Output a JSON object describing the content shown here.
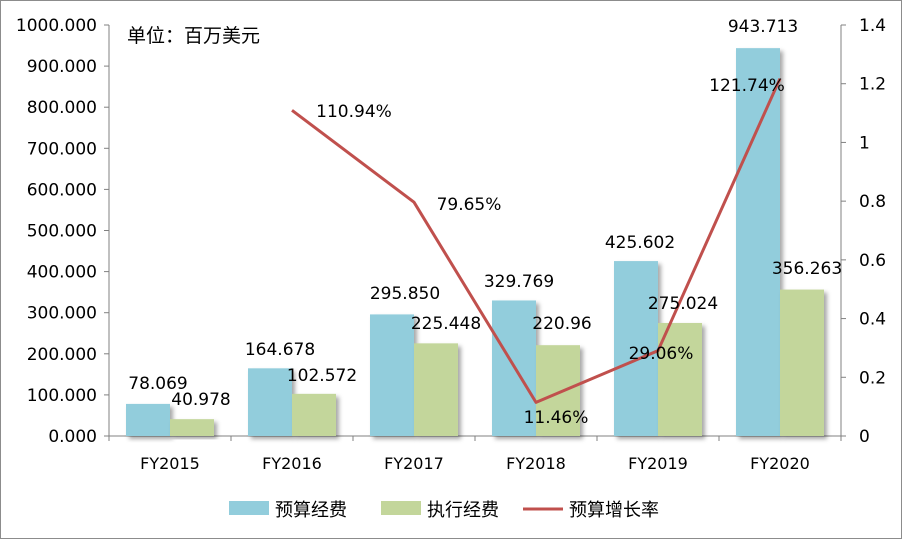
{
  "chart_data": {
    "type": "bar",
    "unit_note": "单位：百万美元",
    "categories": [
      "FY2015",
      "FY2016",
      "FY2017",
      "FY2018",
      "FY2019",
      "FY2020"
    ],
    "series": [
      {
        "name": "预算经费",
        "kind": "bar",
        "axis": "left",
        "color": "#92CDDC",
        "values": [
          78.069,
          164.678,
          295.85,
          329.769,
          425.602,
          943.713
        ],
        "labels": [
          "78.069",
          "164.678",
          "295.850",
          "329.769",
          "425.602",
          "943.713"
        ]
      },
      {
        "name": "执行经费",
        "kind": "bar",
        "axis": "left",
        "color": "#C3D69B",
        "values": [
          40.978,
          102.572,
          225.448,
          220.96,
          275.024,
          356.263
        ],
        "labels": [
          "40.978",
          "102.572",
          "225.448",
          "220.96",
          "275.024",
          "356.263"
        ]
      },
      {
        "name": "预算增长率",
        "kind": "line",
        "axis": "right",
        "color": "#C0504D",
        "values": [
          null,
          1.1094,
          0.7965,
          0.1146,
          0.2906,
          1.2174
        ],
        "labels": [
          null,
          "110.94%",
          "79.65%",
          "11.46%",
          "29.06%",
          "121.74%"
        ]
      }
    ],
    "y_left": {
      "ylim": [
        0,
        1000
      ],
      "ticks": [
        "0.000",
        "100.000",
        "200.000",
        "300.000",
        "400.000",
        "500.000",
        "600.000",
        "700.000",
        "800.000",
        "900.000",
        "1000.000"
      ]
    },
    "y_right": {
      "ylim": [
        0,
        1.4
      ],
      "ticks": [
        "0",
        "0.2",
        "0.4",
        "0.6",
        "0.8",
        "1",
        "1.2",
        "1.4"
      ]
    },
    "grid": false,
    "legend_position": "bottom"
  }
}
